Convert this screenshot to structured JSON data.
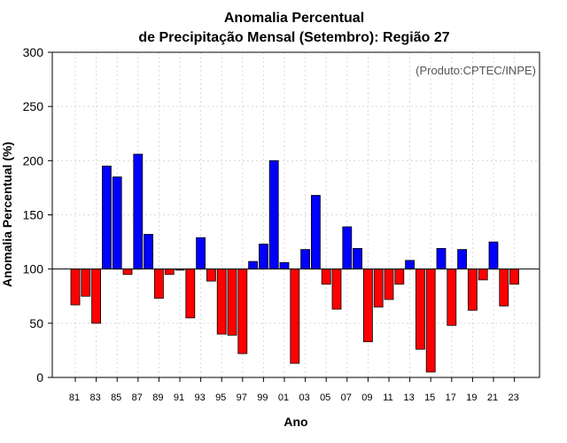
{
  "chart_data": {
    "type": "bar",
    "title_line1": "Anomalia Percentual",
    "title_line2": "de Precipitação Mensal (Setembro): Região 27",
    "xlabel": "Ano",
    "ylabel": "Anomalia Percentual (%)",
    "credit": "(Produto:CPTEC/INPE)",
    "baseline": 100,
    "ylim": [
      0,
      300
    ],
    "yticks": [
      0,
      50,
      100,
      150,
      200,
      250,
      300
    ],
    "grid": true,
    "colors": {
      "above": "#0000ff",
      "below": "#ff0000",
      "border": "#000000",
      "grid": "#d8d8d8"
    },
    "categories": [
      "81",
      "82",
      "83",
      "84",
      "85",
      "86",
      "87",
      "88",
      "89",
      "90",
      "91",
      "92",
      "93",
      "94",
      "95",
      "96",
      "97",
      "98",
      "99",
      "00",
      "01",
      "02",
      "03",
      "04",
      "05",
      "06",
      "07",
      "08",
      "09",
      "10",
      "11",
      "12",
      "13",
      "14",
      "15",
      "16",
      "17",
      "18",
      "19",
      "20",
      "21",
      "22",
      "23"
    ],
    "xtick_labels": [
      "81",
      "83",
      "85",
      "87",
      "89",
      "91",
      "93",
      "95",
      "97",
      "99",
      "01",
      "03",
      "05",
      "07",
      "09",
      "11",
      "13",
      "15",
      "17",
      "19",
      "21",
      "23"
    ],
    "values": [
      67,
      75,
      50,
      195,
      185,
      95,
      206,
      132,
      73,
      95,
      99,
      55,
      129,
      89,
      40,
      39,
      22,
      107,
      123,
      200,
      106,
      13,
      118,
      168,
      86,
      63,
      139,
      119,
      33,
      65,
      72,
      86,
      108,
      26,
      5,
      119,
      48,
      118,
      62,
      90,
      125,
      66,
      86
    ]
  }
}
